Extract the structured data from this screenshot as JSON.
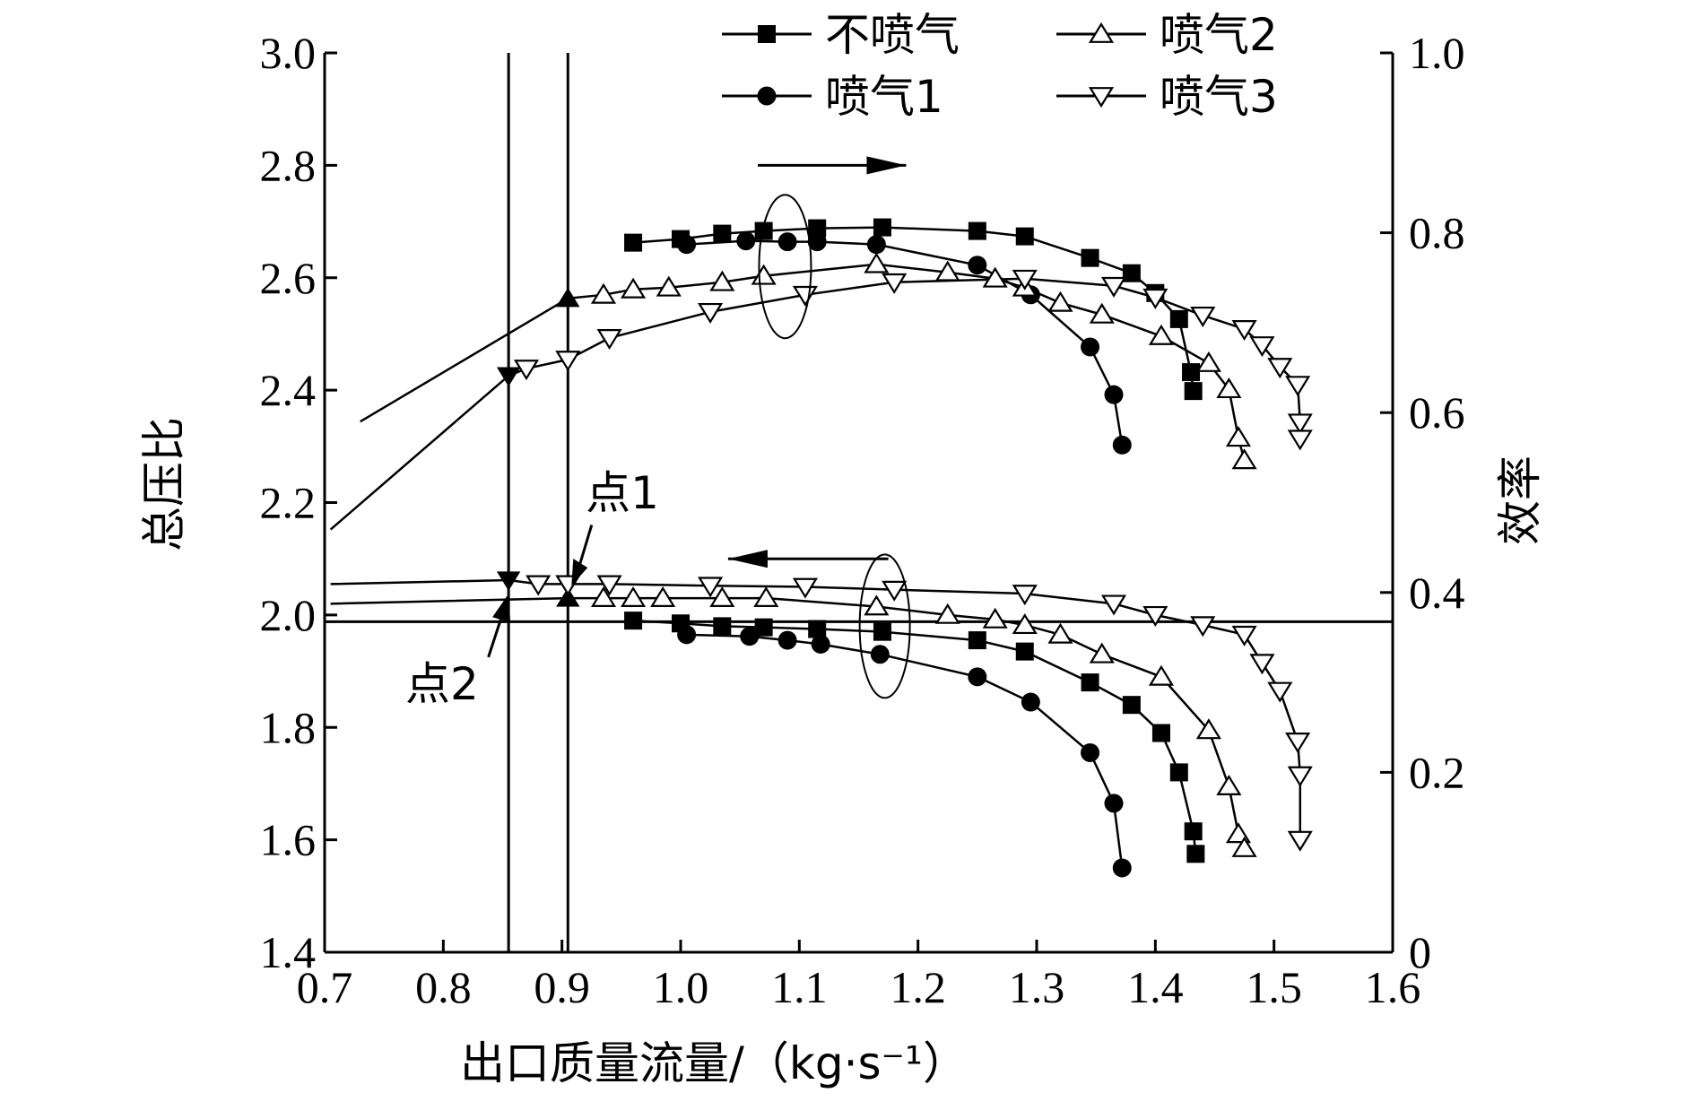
{
  "chart_data": {
    "type": "line",
    "title": "",
    "xlabel": "出口质量流量/（kg·s⁻¹）",
    "ylabel_left": "总压比",
    "ylabel_right": "效率",
    "xlim": [
      0.7,
      1.6
    ],
    "ylim_left": [
      1.4,
      3.0
    ],
    "ylim_right": [
      0,
      1.0
    ],
    "x_ticks": [
      "0.7",
      "0.8",
      "0.9",
      "1.0",
      "1.1",
      "1.2",
      "1.3",
      "1.4",
      "1.5",
      "1.6"
    ],
    "y_left_ticks": [
      "1.4",
      "1.6",
      "1.8",
      "2.0",
      "2.2",
      "2.4",
      "2.6",
      "2.8",
      "3.0"
    ],
    "y_right_ticks": [
      "0",
      "0.2",
      "0.4",
      "0.6",
      "0.8",
      "1.0"
    ],
    "grid": false,
    "legend_position": "top",
    "series": [
      {
        "name": "不喷气",
        "marker": "square",
        "pressure_ratio": {
          "x": [
            0.96,
            1.0,
            1.035,
            1.07,
            1.115,
            1.17,
            1.25,
            1.29,
            1.345,
            1.38,
            1.405,
            1.42,
            1.432,
            1.434
          ],
          "y": [
            1.99,
            1.985,
            1.98,
            1.978,
            1.975,
            1.97,
            1.955,
            1.935,
            1.88,
            1.84,
            1.79,
            1.72,
            1.615,
            1.575
          ]
        },
        "efficiency": {
          "x": [
            0.96,
            1.0,
            1.035,
            1.07,
            1.115,
            1.17,
            1.25,
            1.29,
            1.345,
            1.38,
            1.4,
            1.42,
            1.43,
            1.432
          ],
          "y": [
            0.789,
            0.793,
            0.799,
            0.802,
            0.805,
            0.806,
            0.802,
            0.796,
            0.772,
            0.755,
            0.733,
            0.704,
            0.645,
            0.624
          ]
        }
      },
      {
        "name": "喷气1",
        "marker": "circle",
        "pressure_ratio": {
          "x": [
            1.005,
            1.058,
            1.09,
            1.118,
            1.168,
            1.25,
            1.295,
            1.345,
            1.365,
            1.372
          ],
          "y": [
            1.965,
            1.962,
            1.955,
            1.948,
            1.93,
            1.89,
            1.845,
            1.755,
            1.665,
            1.55
          ]
        },
        "efficiency": {
          "x": [
            1.005,
            1.055,
            1.09,
            1.115,
            1.165,
            1.25,
            1.295,
            1.345,
            1.365,
            1.372
          ],
          "y": [
            0.787,
            0.791,
            0.79,
            0.79,
            0.787,
            0.764,
            0.731,
            0.673,
            0.62,
            0.564
          ]
        }
      },
      {
        "name": "喷气2",
        "marker": "triangle-up",
        "pressure_ratio": {
          "x": [
            0.705,
            0.905,
            0.935,
            0.96,
            0.985,
            1.035,
            1.072,
            1.165,
            1.225,
            1.265,
            1.29,
            1.32,
            1.355,
            1.405,
            1.445,
            1.462,
            1.47,
            1.475
          ],
          "y": [
            2.02,
            2.03,
            2.03,
            2.03,
            2.03,
            2.03,
            2.03,
            2.015,
            2.0,
            1.992,
            1.982,
            1.965,
            1.93,
            1.89,
            1.795,
            1.695,
            1.61,
            1.585
          ]
        },
        "efficiency": {
          "x": [
            0.73,
            0.905,
            0.935,
            0.96,
            0.99,
            1.035,
            1.07,
            1.165,
            1.225,
            1.265,
            1.29,
            1.32,
            1.355,
            1.405,
            1.445,
            1.462,
            1.47,
            1.475
          ],
          "y": [
            0.59,
            0.727,
            0.731,
            0.737,
            0.739,
            0.745,
            0.752,
            0.765,
            0.756,
            0.749,
            0.739,
            0.722,
            0.709,
            0.685,
            0.655,
            0.626,
            0.572,
            0.547
          ]
        }
      },
      {
        "name": "喷气3",
        "marker": "triangle-down",
        "pressure_ratio": {
          "x": [
            0.705,
            0.855,
            0.88,
            0.905,
            0.94,
            1.025,
            1.105,
            1.18,
            1.29,
            1.365,
            1.4,
            1.44,
            1.475,
            1.49,
            1.505,
            1.52,
            1.522,
            1.522
          ],
          "y": [
            2.055,
            2.062,
            2.055,
            2.055,
            2.055,
            2.052,
            2.05,
            2.045,
            2.038,
            2.02,
            2.0,
            1.982,
            1.965,
            1.915,
            1.865,
            1.775,
            1.715,
            1.6
          ]
        },
        "efficiency": {
          "x": [
            0.705,
            0.855,
            0.87,
            0.905,
            0.94,
            1.025,
            1.105,
            1.18,
            1.29,
            1.365,
            1.4,
            1.44,
            1.475,
            1.49,
            1.505,
            1.52,
            1.522,
            1.522
          ],
          "y": [
            0.47,
            0.641,
            0.649,
            0.659,
            0.683,
            0.712,
            0.731,
            0.745,
            0.749,
            0.741,
            0.728,
            0.708,
            0.693,
            0.675,
            0.651,
            0.631,
            0.589,
            0.571
          ]
        }
      }
    ],
    "reference_lines": {
      "vertical_x": [
        0.855,
        0.905
      ],
      "horizontal_y_left": 1.988
    },
    "annotations": [
      {
        "text": "点1",
        "x": 0.905,
        "y": 2.03
      },
      {
        "text": "点2",
        "x": 0.855,
        "y": 2.06
      }
    ],
    "arrows": [
      {
        "label": "",
        "direction": "right",
        "indicates": "efficiency"
      },
      {
        "label": "",
        "direction": "left",
        "indicates": "pressure_ratio"
      }
    ]
  }
}
